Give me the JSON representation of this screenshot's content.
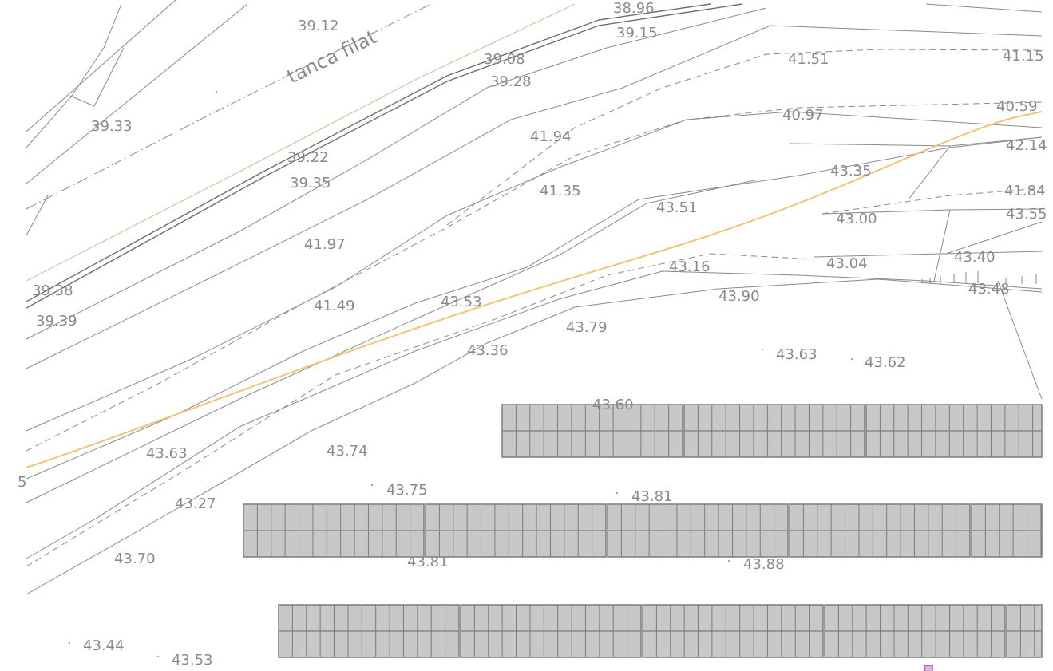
{
  "drawing": {
    "annotation": "tanca filat",
    "elevations": [
      "38.96",
      "39.15",
      "39.12",
      "39.08",
      "39.28",
      "39.33",
      "39.22",
      "39.35",
      "39.38",
      "39.39",
      "41.51",
      "41.15",
      "40.97",
      "40.59",
      "41.94",
      "42.14",
      "43.35",
      "41.84",
      "41.35",
      "43.51",
      "43.00",
      "43.55",
      "41.97",
      "43.04",
      "43.40",
      "43.16",
      "41.49",
      "43.53",
      "43.90",
      "43.48",
      "43.79",
      "43.36",
      "43.63",
      "43.62",
      "43.60",
      "43.63",
      "43.74",
      "43.75",
      "43.81",
      "43.27",
      "43.70",
      "43.81",
      "43.88",
      "43.44",
      "43.53",
      "5"
    ],
    "colors": {
      "background": "#ffffff",
      "contour": "#8a8a8a",
      "boundary_line": "#6e6e6e",
      "pipeline": "#f4c27a",
      "fence_line": "#c8c8a0",
      "solar_panel_fill": "#c8c8c8",
      "solar_panel_stroke": "#7c7c7c",
      "marker": "#8a3a8a"
    },
    "panel_rows": [
      {
        "modules": 3,
        "columns_per_module": 13,
        "rows": 2
      },
      {
        "modules": 5,
        "columns_per_module": 13,
        "rows": 2
      },
      {
        "modules": 5,
        "columns_per_module": 13,
        "rows": 2
      }
    ]
  }
}
